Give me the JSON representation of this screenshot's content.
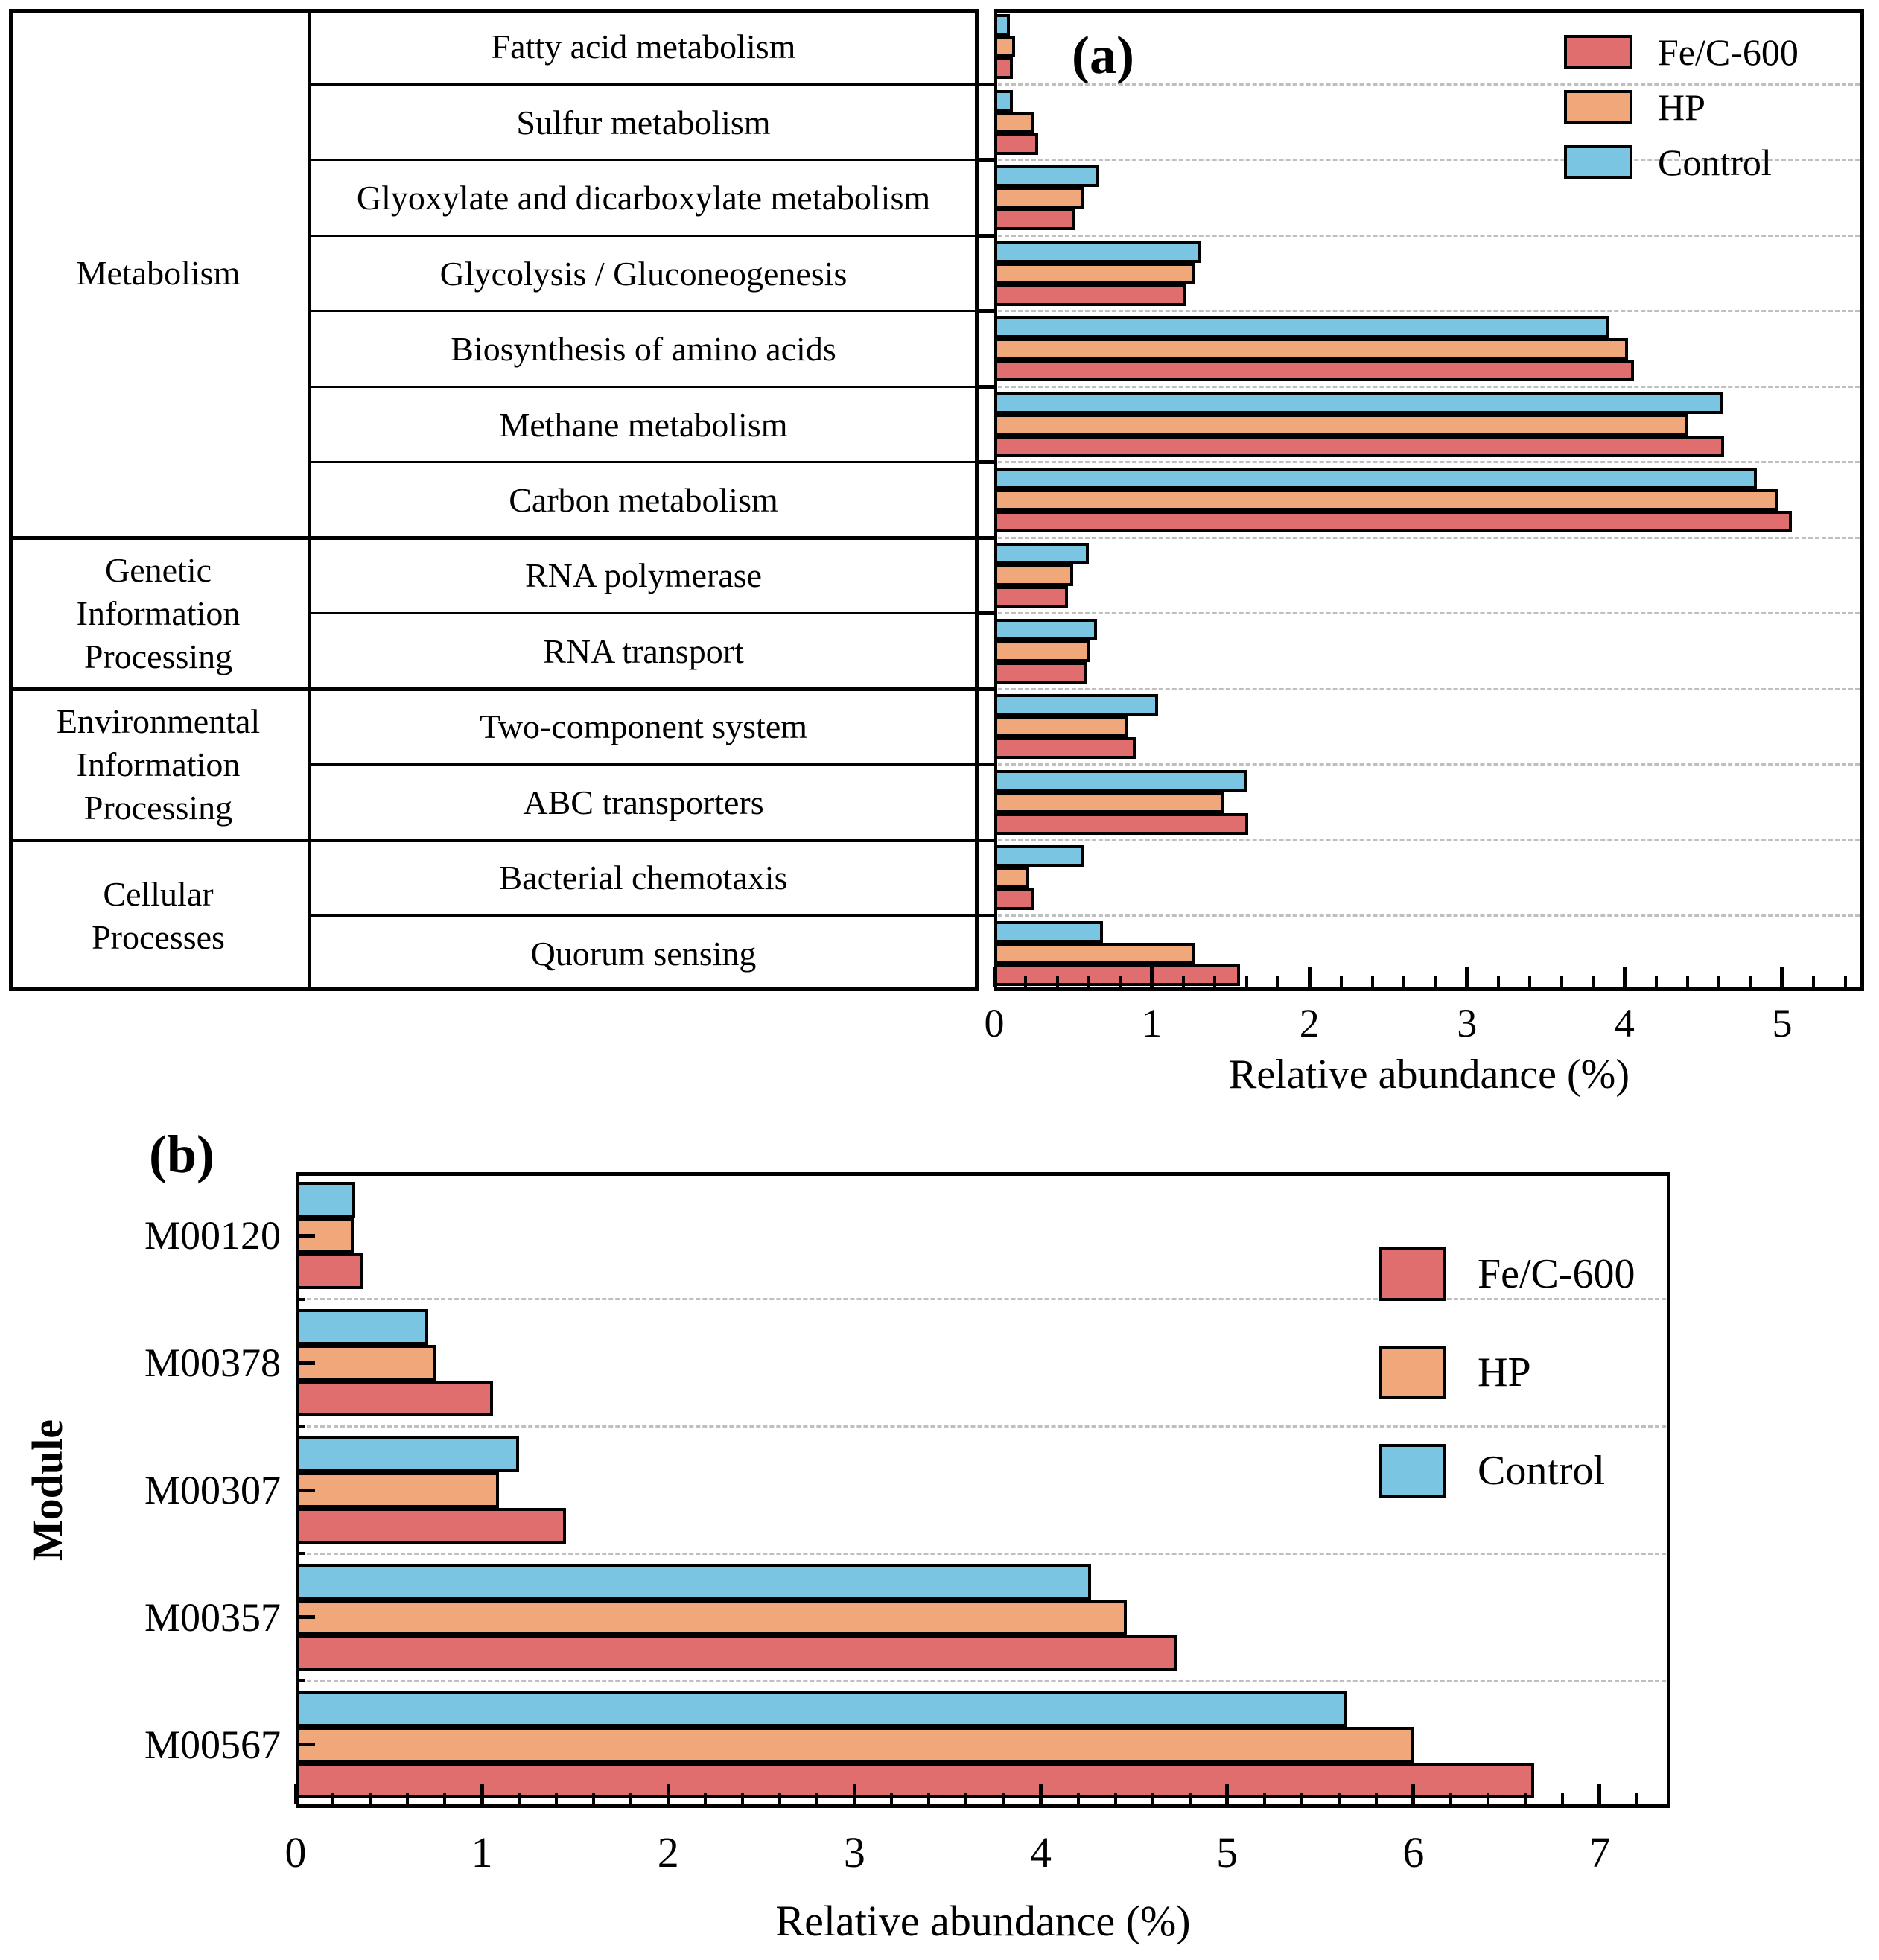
{
  "figure": {
    "panel_a": {
      "label": "(a)",
      "xlabel": "Relative abundance (%)"
    },
    "panel_b": {
      "label": "(b)",
      "xlabel": "Relative abundance (%)",
      "ylabel": "Module"
    },
    "colors": {
      "fe_c_600": "#E06E6E",
      "hp": "#F0A87A",
      "control": "#7AC6E2",
      "gridline": "#BFBFBF",
      "axis": "#000000"
    }
  },
  "chart_data": [
    {
      "type": "bar",
      "panel": "a",
      "orientation": "horizontal-grouped",
      "title": "",
      "xlabel": "Relative abundance (%)",
      "ylabel": "",
      "xlim": [
        0,
        5.52
      ],
      "x_ticks": [
        0,
        1,
        2,
        3,
        4,
        5
      ],
      "x_minor_step": 0.2,
      "grid": "dashed horizontal lines at category boundaries",
      "legend_position": "top-right",
      "bar_order_top_to_bottom": [
        "Control",
        "HP",
        "Fe/C-600"
      ],
      "row_groups": [
        {
          "label": "Metabolism",
          "span": 7
        },
        {
          "label": "Genetic\nInformation\nProcessing",
          "span": 2
        },
        {
          "label": "Environmental\nInformation\nProcessing",
          "span": 2
        },
        {
          "label": "Cellular\nProcesses",
          "span": 2
        }
      ],
      "categories": [
        "Fatty acid metabolism",
        "Sulfur metabolism",
        "Glyoxylate and dicarboxylate metabolism",
        "Glycolysis / Gluconeogenesis",
        "Biosynthesis of amino acids",
        "Methane metabolism",
        "Carbon metabolism",
        "RNA polymerase",
        "RNA transport",
        "Two-component system",
        "ABC transporters",
        "Bacterial chemotaxis",
        "Quorum sensing"
      ],
      "series": [
        {
          "name": "Fe/C-600",
          "color": "#E06E6E",
          "values": [
            0.12,
            0.28,
            0.51,
            1.22,
            4.06,
            4.63,
            5.06,
            0.47,
            0.59,
            0.9,
            1.61,
            0.25,
            1.56
          ]
        },
        {
          "name": "HP",
          "color": "#F0A87A",
          "values": [
            0.13,
            0.25,
            0.57,
            1.27,
            4.02,
            4.4,
            4.97,
            0.5,
            0.61,
            0.85,
            1.46,
            0.22,
            1.27
          ]
        },
        {
          "name": "Control",
          "color": "#7AC6E2",
          "values": [
            0.1,
            0.12,
            0.66,
            1.31,
            3.9,
            4.62,
            4.84,
            0.6,
            0.65,
            1.04,
            1.6,
            0.57,
            0.69
          ]
        }
      ]
    },
    {
      "type": "bar",
      "panel": "b",
      "orientation": "horizontal-grouped",
      "title": "",
      "xlabel": "Relative abundance (%)",
      "ylabel": "Module",
      "xlim": [
        0,
        7.38
      ],
      "x_ticks": [
        0,
        1,
        2,
        3,
        4,
        5,
        6,
        7
      ],
      "x_minor_step": 0.2,
      "grid": "dashed horizontal lines at category boundaries",
      "legend_position": "top-right",
      "bar_order_top_to_bottom": [
        "Control",
        "HP",
        "Fe/C-600"
      ],
      "categories": [
        "M00120",
        "M00378",
        "M00307",
        "M00357",
        "M00567"
      ],
      "series": [
        {
          "name": "Fe/C-600",
          "color": "#E06E6E",
          "values": [
            0.36,
            1.06,
            1.45,
            4.73,
            6.65
          ]
        },
        {
          "name": "HP",
          "color": "#F0A87A",
          "values": [
            0.31,
            0.75,
            1.09,
            4.46,
            6.0
          ]
        },
        {
          "name": "Control",
          "color": "#7AC6E2",
          "values": [
            0.32,
            0.71,
            1.2,
            4.27,
            5.64
          ]
        }
      ]
    }
  ]
}
